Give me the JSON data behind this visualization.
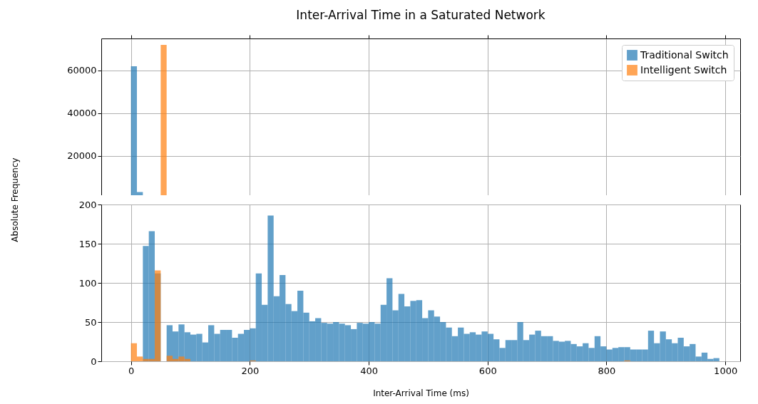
{
  "chart_data": [
    {
      "type": "histogram",
      "title": "Inter-Arrival Time in a Saturated Network",
      "bins": [
        0,
        10,
        20,
        30,
        40,
        50,
        60,
        70,
        80,
        90,
        100,
        110,
        120,
        130,
        140,
        150,
        160,
        170,
        180,
        190,
        200,
        210,
        220,
        230,
        240,
        250,
        260,
        270,
        280,
        290,
        300,
        310,
        320,
        330,
        340,
        350,
        360,
        370,
        380,
        390,
        400,
        410,
        420,
        430,
        440,
        450,
        460,
        470,
        480,
        490,
        500,
        510,
        520,
        530,
        540,
        550,
        560,
        570,
        580,
        590,
        600,
        610,
        620,
        630,
        640,
        650,
        660,
        670,
        680,
        690,
        700,
        710,
        720,
        730,
        740,
        750,
        760,
        770,
        780,
        790,
        800,
        810,
        820,
        830,
        840,
        850,
        860,
        870,
        880,
        890,
        900,
        910,
        920,
        930,
        940,
        950,
        960,
        970,
        980,
        990,
        1000
      ],
      "series": [
        {
          "name": "Traditional Switch",
          "color": "#1f77b4",
          "values": [
            62000,
            3000,
            null,
            null,
            null,
            null,
            null,
            null,
            null,
            null,
            null,
            null,
            null,
            null,
            null,
            null,
            null,
            null,
            null,
            null,
            null,
            null,
            null,
            null,
            null,
            null,
            null,
            null,
            null,
            null,
            null,
            null,
            null,
            null,
            null,
            null,
            null,
            null,
            null,
            null,
            null,
            null,
            null,
            null,
            null,
            null,
            null,
            null,
            null,
            null,
            null,
            null,
            null,
            null,
            null,
            null,
            null,
            null,
            null,
            null,
            null,
            null,
            null,
            null,
            null,
            null,
            null,
            null,
            null,
            null,
            null,
            null,
            null,
            null,
            null,
            null,
            null,
            null,
            null,
            null,
            null,
            null,
            null,
            null,
            null,
            null,
            null,
            null,
            null,
            null,
            null,
            null,
            null,
            null,
            null,
            null,
            null,
            null,
            null,
            null
          ]
        },
        {
          "name": "Intelligent Switch",
          "color": "#ff7f0e",
          "values": [
            null,
            null,
            null,
            null,
            null,
            72000,
            null,
            null,
            null,
            null,
            null,
            null,
            null,
            null,
            null,
            null,
            null,
            null,
            null,
            null,
            null,
            null,
            null,
            null,
            null,
            null,
            null,
            null,
            null,
            null,
            null,
            null,
            null,
            null,
            null,
            null,
            null,
            null,
            null,
            null,
            null,
            null,
            null,
            null,
            null,
            null,
            null,
            null,
            null,
            null,
            null,
            null,
            null,
            null,
            null,
            null,
            null,
            null,
            null,
            null,
            null,
            null,
            null,
            null,
            null,
            null,
            null,
            null,
            null,
            null,
            null,
            null,
            null,
            null,
            null,
            null,
            null,
            null,
            null,
            null,
            null,
            null,
            null,
            null,
            null,
            null,
            null,
            null,
            null,
            null,
            null,
            null,
            null,
            null,
            null,
            null,
            null,
            null,
            null,
            null
          ]
        }
      ],
      "xlim": [
        -50,
        1025
      ],
      "xticks": [
        0,
        200,
        400,
        600,
        800,
        1000
      ],
      "ylim": [
        1500,
        75000
      ],
      "yticks": [
        20000,
        40000,
        60000
      ],
      "tick_labels": "y",
      "grid": true,
      "legend": "top right"
    },
    {
      "type": "histogram",
      "xlabel": "Inter-Arrival Time (ms)",
      "ylabel": "Absolute Frequency",
      "bins": [
        0,
        10,
        20,
        30,
        40,
        50,
        60,
        70,
        80,
        90,
        100,
        110,
        120,
        130,
        140,
        150,
        160,
        170,
        180,
        190,
        200,
        210,
        220,
        230,
        240,
        250,
        260,
        270,
        280,
        290,
        300,
        310,
        320,
        330,
        340,
        350,
        360,
        370,
        380,
        390,
        400,
        410,
        420,
        430,
        440,
        450,
        460,
        470,
        480,
        490,
        500,
        510,
        520,
        530,
        540,
        550,
        560,
        570,
        580,
        590,
        600,
        610,
        620,
        630,
        640,
        650,
        660,
        670,
        680,
        690,
        700,
        710,
        720,
        730,
        740,
        750,
        760,
        770,
        780,
        790,
        800,
        810,
        820,
        830,
        840,
        850,
        860,
        870,
        880,
        890,
        900,
        910,
        920,
        930,
        940,
        950,
        960,
        970,
        980,
        990,
        1000
      ],
      "series": [
        {
          "color": "#1f77b4",
          "values": [
            null,
            null,
            147,
            166,
            112,
            null,
            46,
            38,
            47,
            37,
            34,
            35,
            24,
            46,
            35,
            40,
            40,
            30,
            35,
            40,
            42,
            112,
            72,
            186,
            83,
            110,
            73,
            64,
            90,
            62,
            51,
            55,
            49,
            48,
            50,
            48,
            46,
            41,
            49,
            48,
            50,
            48,
            72,
            106,
            65,
            86,
            70,
            77,
            78,
            55,
            65,
            57,
            50,
            43,
            32,
            43,
            35,
            37,
            34,
            38,
            35,
            28,
            17,
            27,
            27,
            50,
            27,
            34,
            39,
            32,
            32,
            26,
            25,
            26,
            22,
            19,
            23,
            17,
            32,
            19,
            15,
            17,
            18,
            18,
            15,
            15,
            15,
            39,
            23,
            38,
            28,
            23,
            30,
            19,
            22,
            6,
            11,
            3,
            4,
            0
          ]
        },
        {
          "color": "#ff7f0e",
          "values": [
            23,
            6,
            3,
            3,
            116,
            null,
            7,
            3,
            6,
            3,
            0,
            0,
            0,
            0,
            0,
            0,
            0,
            0,
            0,
            0,
            1,
            0,
            0,
            0,
            0,
            0,
            0,
            0,
            0,
            0,
            0,
            0,
            0,
            0,
            0,
            0,
            0,
            0,
            0,
            0,
            0,
            0,
            0,
            0,
            0,
            0,
            0,
            0,
            0,
            0,
            0,
            0,
            0,
            0,
            0,
            0,
            0,
            0,
            0,
            0,
            0,
            0,
            0,
            0,
            0,
            0,
            0,
            0,
            0,
            0,
            0,
            0,
            0,
            0,
            0,
            0,
            0,
            0,
            0,
            0,
            0,
            0,
            0,
            1,
            0,
            0,
            0,
            0,
            0,
            0,
            0,
            0,
            0,
            0,
            0,
            0,
            0,
            0,
            0,
            0
          ]
        }
      ],
      "xlim": [
        -50,
        1025
      ],
      "xticks": [
        0,
        200,
        400,
        600,
        800,
        1000
      ],
      "ylim": [
        0,
        200
      ],
      "yticks": [
        0,
        50,
        100,
        150,
        200
      ],
      "grid": true
    }
  ]
}
